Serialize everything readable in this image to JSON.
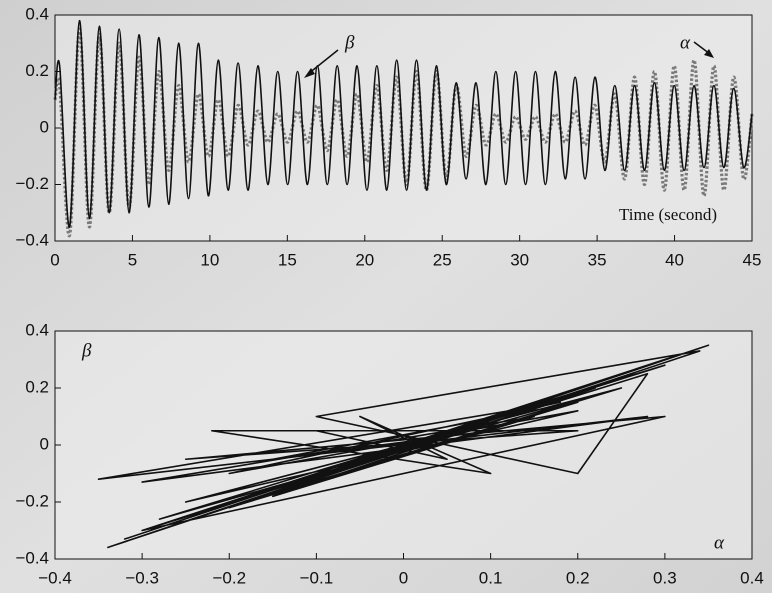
{
  "chart_data": [
    {
      "type": "line",
      "x_label": "Time (second)",
      "x": [
        0,
        0.3,
        0.94,
        1.58,
        2.22,
        2.86,
        3.5,
        4.14,
        4.78,
        5.42,
        6.06,
        6.7,
        7.34,
        7.98,
        8.62,
        9.26,
        9.9,
        10.54,
        11.18,
        11.82,
        12.46,
        13.1,
        13.74,
        14.38,
        15.02,
        15.66,
        16.3,
        16.94,
        17.58,
        18.22,
        18.86,
        19.5,
        20.14,
        20.78,
        21.42,
        22.06,
        22.7,
        23.34,
        23.98,
        24.62,
        25.26,
        25.9,
        26.54,
        27.18,
        27.82,
        28.46,
        29.1,
        29.74,
        30.38,
        31.02,
        31.66,
        32.3,
        32.94,
        33.58,
        34.22,
        34.86,
        35.5,
        36.14,
        36.78,
        37.42,
        38.06,
        38.7,
        39.34,
        39.98,
        40.62,
        41.26,
        41.9,
        42.54,
        43.18,
        43.82,
        44.46,
        45
      ],
      "series": [
        {
          "name": "β",
          "color": "#111111",
          "style": "solid",
          "values": [
            0.1,
            0.22,
            -0.35,
            0.38,
            -0.32,
            0.36,
            -0.3,
            0.35,
            -0.3,
            0.33,
            -0.28,
            0.32,
            -0.27,
            0.3,
            -0.25,
            0.3,
            -0.24,
            0.24,
            -0.22,
            0.23,
            -0.22,
            0.22,
            -0.2,
            0.2,
            -0.2,
            0.2,
            -0.2,
            0.22,
            -0.2,
            0.22,
            -0.2,
            0.22,
            -0.22,
            0.22,
            -0.22,
            0.24,
            -0.22,
            0.24,
            -0.22,
            0.22,
            -0.2,
            0.16,
            -0.18,
            0.16,
            -0.2,
            0.2,
            -0.2,
            0.2,
            -0.2,
            0.2,
            -0.2,
            0.2,
            -0.18,
            0.18,
            -0.18,
            0.18,
            -0.15,
            0.15,
            -0.15,
            0.15,
            -0.15,
            0.16,
            -0.15,
            0.15,
            -0.15,
            0.15,
            -0.14,
            0.15,
            -0.14,
            0.14,
            -0.14,
            0.05
          ]
        },
        {
          "name": "α",
          "color": "#7a7a7a",
          "style": "dotted",
          "values": [
            0.1,
            0.15,
            -0.38,
            0.35,
            -0.35,
            0.33,
            -0.3,
            0.3,
            -0.28,
            0.25,
            -0.2,
            0.2,
            -0.15,
            0.15,
            -0.12,
            0.12,
            -0.1,
            0.1,
            -0.1,
            0.08,
            -0.06,
            0.06,
            -0.05,
            0.05,
            -0.05,
            0.06,
            -0.05,
            0.08,
            -0.08,
            0.1,
            -0.1,
            0.12,
            -0.12,
            0.15,
            -0.15,
            0.18,
            -0.2,
            0.2,
            -0.22,
            0.2,
            -0.18,
            0.15,
            -0.1,
            0.08,
            -0.06,
            0.05,
            -0.05,
            0.04,
            -0.04,
            0.04,
            -0.05,
            0.05,
            -0.05,
            0.06,
            -0.06,
            0.08,
            -0.12,
            0.12,
            -0.18,
            0.18,
            -0.2,
            0.2,
            -0.22,
            0.22,
            -0.22,
            0.24,
            -0.24,
            0.22,
            -0.22,
            0.18,
            -0.18,
            0.05
          ]
        }
      ],
      "xlim": [
        0,
        45
      ],
      "xticks": [
        0,
        5,
        10,
        15,
        20,
        25,
        30,
        35,
        40,
        45
      ],
      "ylim": [
        -0.4,
        0.4
      ],
      "yticks": [
        {
          "value": -0.4,
          "label": "−0.4"
        },
        {
          "value": -0.2,
          "label": "−0.2"
        },
        0,
        0.2,
        0.4
      ]
    },
    {
      "type": "line",
      "x_label": "α",
      "y_label": "β",
      "x": [
        -0.34,
        0.35,
        -0.32,
        0.32,
        -0.3,
        0.3,
        -0.28,
        0.25,
        -0.25,
        0.2,
        -0.2,
        0.18,
        -0.35,
        0.28,
        -0.3,
        0.15,
        -0.15,
        0.22,
        -0.18,
        0.25,
        -0.2,
        0.2,
        -0.15,
        0.1,
        -0.1,
        0.05,
        -0.05,
        0.1,
        -0.22,
        0.2,
        -0.25,
        0.3,
        -0.3,
        0.28,
        0.2,
        -0.1,
        0.34,
        -0.33
      ],
      "series": [
        {
          "name": "β",
          "color": "#111111",
          "style": "solid",
          "values": [
            -0.36,
            0.35,
            -0.33,
            0.32,
            -0.3,
            0.28,
            -0.26,
            0.2,
            -0.2,
            0.12,
            -0.1,
            0.15,
            -0.12,
            0.1,
            -0.13,
            0.1,
            -0.18,
            0.2,
            -0.2,
            0.2,
            -0.22,
            0.15,
            -0.05,
            0.05,
            0.05,
            -0.05,
            0.1,
            -0.1,
            0.05,
            0.05,
            -0.05,
            0.1,
            -0.3,
            0.25,
            -0.1,
            0.1,
            0.33,
            -0.35
          ]
        }
      ],
      "xlim": [
        -0.4,
        0.4
      ],
      "xticks": [
        {
          "value": -0.4,
          "label": "−0.4"
        },
        {
          "value": -0.3,
          "label": "−0.3"
        },
        {
          "value": -0.2,
          "label": "−0.2"
        },
        {
          "value": -0.1,
          "label": "−0.1"
        },
        0,
        0.1,
        0.2,
        0.3,
        0.4
      ],
      "ylim": [
        -0.4,
        0.4
      ],
      "yticks": [
        {
          "value": -0.4,
          "label": "−0.4"
        },
        {
          "value": -0.2,
          "label": "−0.2"
        },
        0,
        0.2,
        0.4
      ]
    }
  ]
}
